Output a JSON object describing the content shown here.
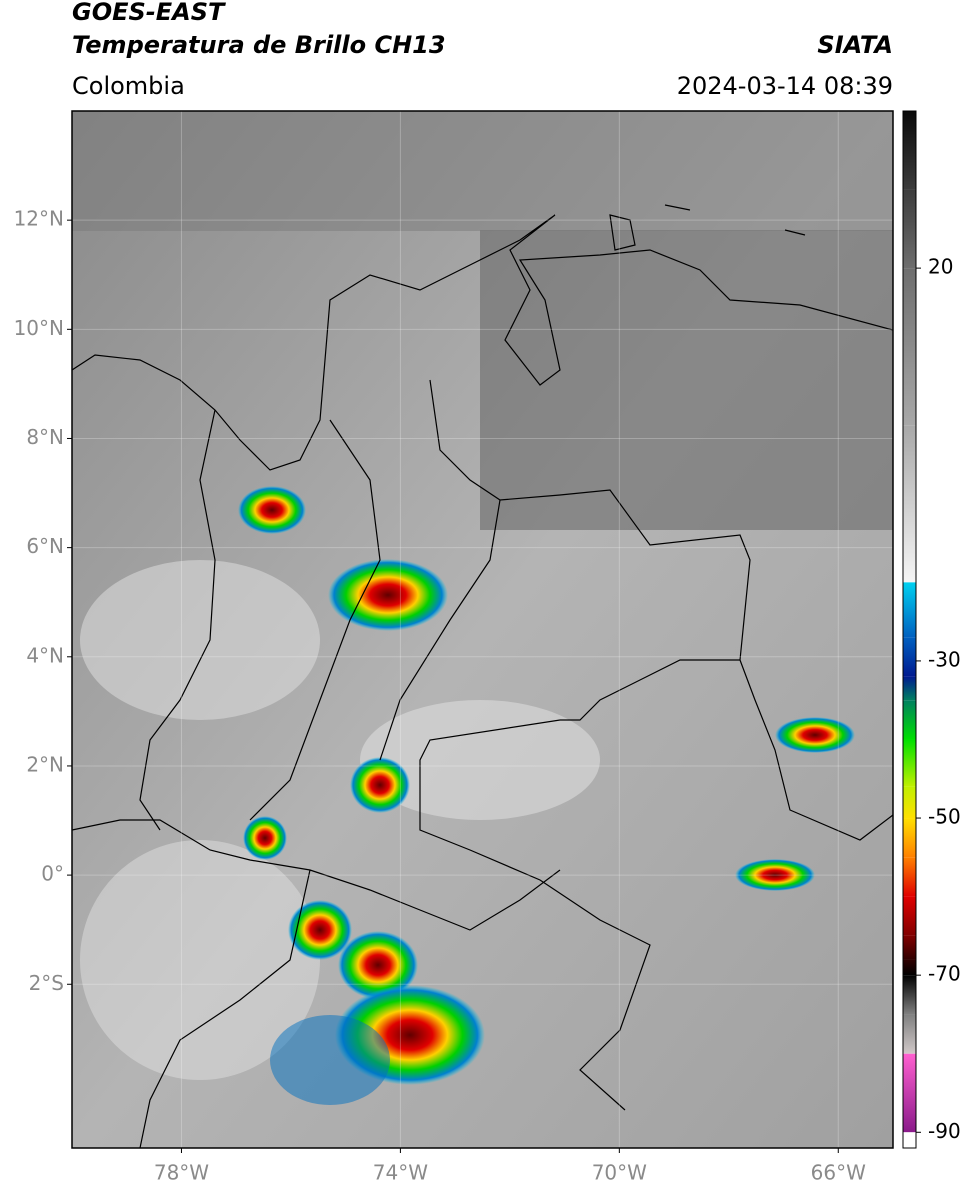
{
  "header": {
    "title": "GOES-EAST",
    "subtitle": "Temperatura de Brillo CH13",
    "region": "Colombia",
    "source": "SIATA",
    "datetime": "2024-03-14 08:39"
  },
  "map": {
    "xlim": [
      -80,
      -65
    ],
    "ylim": [
      -5,
      14
    ],
    "grid": true,
    "xticks": [
      {
        "value": -78,
        "label": "78°W"
      },
      {
        "value": -74,
        "label": "74°W"
      },
      {
        "value": -70,
        "label": "70°W"
      },
      {
        "value": -66,
        "label": "66°W"
      }
    ],
    "yticks": [
      {
        "value": 12,
        "label": "12°N"
      },
      {
        "value": 10,
        "label": "10°N"
      },
      {
        "value": 8,
        "label": "8°N"
      },
      {
        "value": 6,
        "label": "6°N"
      },
      {
        "value": 4,
        "label": "4°N"
      },
      {
        "value": 2,
        "label": "2°N"
      },
      {
        "value": 0,
        "label": "0°"
      },
      {
        "value": -2,
        "label": "2°S"
      }
    ]
  },
  "colorbar": {
    "clim": [
      -92,
      40
    ],
    "ticks": [
      20,
      -30,
      -50,
      -70,
      -90
    ],
    "colormap": [
      [
        40,
        "#0a0a0a"
      ],
      [
        30,
        "#3c3c3c"
      ],
      [
        20,
        "#6e6e6e"
      ],
      [
        0,
        "#a8a8a8"
      ],
      [
        -20,
        "#f5f5f5"
      ],
      [
        -20,
        "#00d0f0"
      ],
      [
        -27,
        "#0060c0"
      ],
      [
        -32,
        "#001a90"
      ],
      [
        -35,
        "#008060"
      ],
      [
        -40,
        "#00e000"
      ],
      [
        -46,
        "#c0f000"
      ],
      [
        -50,
        "#ffe000"
      ],
      [
        -55,
        "#ff8000"
      ],
      [
        -60,
        "#e00000"
      ],
      [
        -65,
        "#800000"
      ],
      [
        -68,
        "#300000"
      ],
      [
        -70,
        "#000000"
      ],
      [
        -75,
        "#808080"
      ],
      [
        -80,
        "#d0c8c8"
      ],
      [
        -80,
        "#ff60d0"
      ],
      [
        -90,
        "#8a1a8a"
      ],
      [
        -90,
        "#ffffff"
      ],
      [
        -92,
        "#ffffff"
      ]
    ]
  }
}
